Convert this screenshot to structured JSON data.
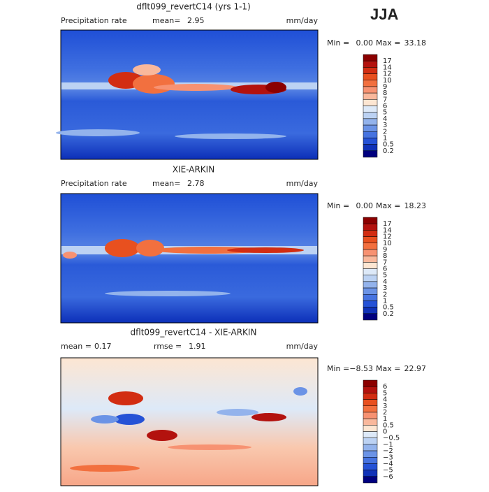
{
  "season": "JJA",
  "panels": [
    {
      "title": "dflt099_revertC14 (yrs 1-1)",
      "left_label": "Precipitation rate",
      "mid_label": "mean=",
      "mid_value": "2.95",
      "units": "mm/day",
      "min_label": "Min =",
      "min_value": "0.00",
      "max_label": "Max =",
      "max_value": "33.18",
      "colorbar": {
        "labels": [
          "17",
          "14",
          "12",
          "10",
          "9",
          "8",
          "7",
          "6",
          "5",
          "4",
          "3",
          "2",
          "1",
          "0.5",
          "0.2"
        ],
        "colors": [
          "#8b0000",
          "#b3120e",
          "#d22d12",
          "#e8501f",
          "#f2703f",
          "#f79272",
          "#f9b89c",
          "#fde6d2",
          "#dde9f8",
          "#bcd2f3",
          "#93b3ec",
          "#6b93e6",
          "#4673e0",
          "#2552d6",
          "#1032b8",
          "#00007f"
        ]
      }
    },
    {
      "title": "XIE-ARKIN",
      "left_label": "Precipitation rate",
      "mid_label": "mean=",
      "mid_value": "2.78",
      "units": "mm/day",
      "min_label": "Min =",
      "min_value": "0.00",
      "max_label": "Max =",
      "max_value": "18.23",
      "colorbar": {
        "labels": [
          "17",
          "14",
          "12",
          "10",
          "9",
          "8",
          "7",
          "6",
          "5",
          "4",
          "3",
          "2",
          "1",
          "0.5",
          "0.2"
        ],
        "colors": [
          "#8b0000",
          "#b3120e",
          "#d22d12",
          "#e8501f",
          "#f2703f",
          "#f79272",
          "#f9b89c",
          "#fde6d2",
          "#dde9f8",
          "#bcd2f3",
          "#93b3ec",
          "#6b93e6",
          "#4673e0",
          "#2552d6",
          "#1032b8",
          "#00007f"
        ]
      }
    },
    {
      "title": "dflt099_revertC14 - XIE-ARKIN",
      "left_label": "mean =",
      "left_value": "0.17",
      "mid_label": "rmse =",
      "mid_value": "1.91",
      "units": "mm/day",
      "min_label": "Min =",
      "min_value": "−8.53",
      "max_label": "Max =",
      "max_value": "22.97",
      "colorbar": {
        "labels": [
          "6",
          "5",
          "4",
          "3",
          "2",
          "1",
          "0.5",
          "0",
          "−0.5",
          "−1",
          "−2",
          "−3",
          "−4",
          "−5",
          "−6"
        ],
        "colors": [
          "#8b0000",
          "#b3120e",
          "#d22d12",
          "#e8501f",
          "#f2703f",
          "#f79272",
          "#f9b89c",
          "#fde6d2",
          "#dde9f8",
          "#bcd2f3",
          "#93b3ec",
          "#6b93e6",
          "#4673e0",
          "#2552d6",
          "#1032b8",
          "#00007f"
        ]
      }
    }
  ]
}
